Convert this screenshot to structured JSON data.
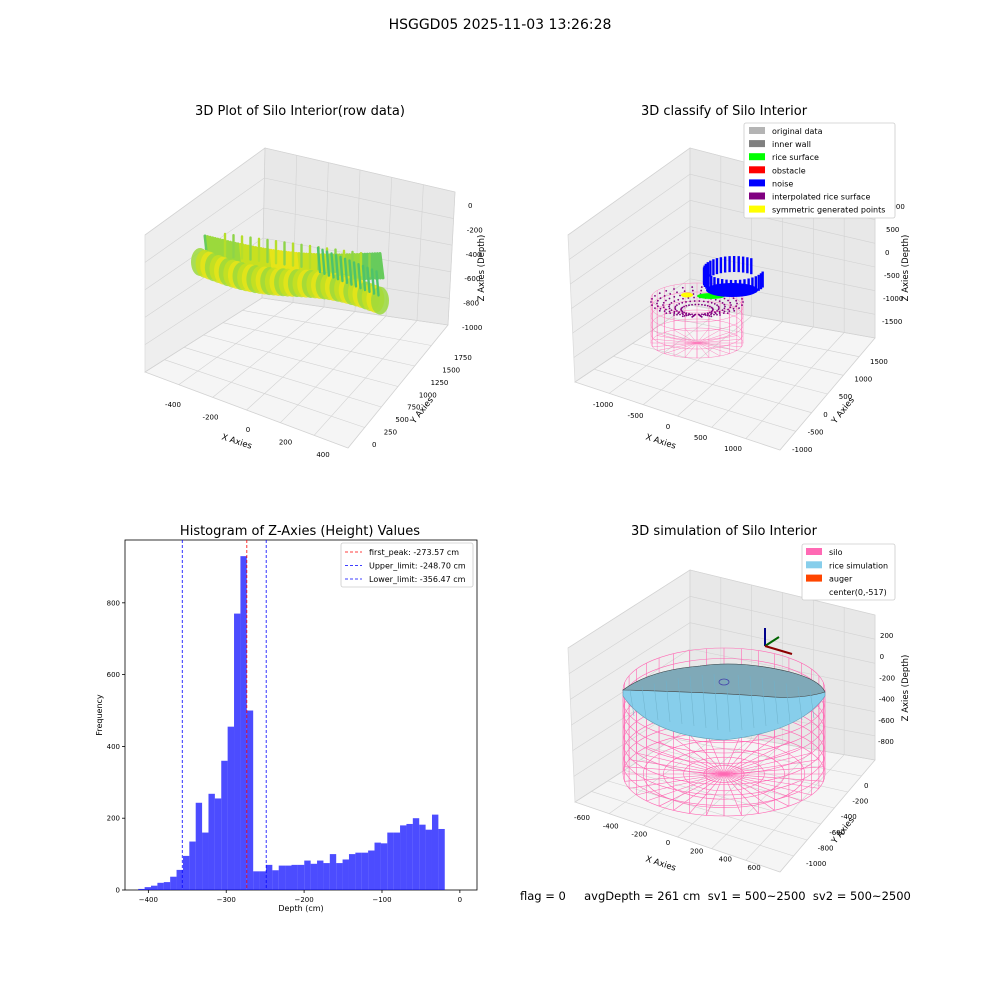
{
  "suptitle": "HSGGD05 2025-11-03 13:26:28",
  "panels": {
    "raw": {
      "title": "3D Plot of Silo Interior(row data)",
      "xlabel": "X Axies",
      "ylabel": "Y Axies",
      "zlabel": "Z Axies (Depth)",
      "xticks": [
        "-400",
        "-200",
        "0",
        "200",
        "400"
      ],
      "yticks": [
        "0",
        "250",
        "500",
        "750",
        "1000",
        "1250",
        "1500",
        "1750"
      ],
      "zticks": [
        "0",
        "-200",
        "-400",
        "-600",
        "-800",
        "-1000"
      ]
    },
    "classify": {
      "title": "3D classify of Silo Interior",
      "xlabel": "X Axies",
      "ylabel": "Y Axies",
      "zlabel": "Z Axies (Depth)",
      "xticks": [
        "-1000",
        "-500",
        "0",
        "500",
        "1000"
      ],
      "yticks": [
        "-1000",
        "-500",
        "0",
        "500",
        "1000",
        "1500"
      ],
      "zticks": [
        "1000",
        "500",
        "0",
        "-500",
        "-1000",
        "-1500"
      ],
      "legend": [
        {
          "label": "original data",
          "color": "#b4b4b4"
        },
        {
          "label": "inner wall",
          "color": "#808080"
        },
        {
          "label": "rice surface",
          "color": "#00ff00"
        },
        {
          "label": "obstacle",
          "color": "#ff0000"
        },
        {
          "label": "noise",
          "color": "#0000ff"
        },
        {
          "label": "interpolated rice surface",
          "color": "#800080"
        },
        {
          "label": "symmetric generated points",
          "color": "#ffff00"
        }
      ]
    },
    "simulation": {
      "title": "3D simulation of Silo Interior",
      "xlabel": "X Axies",
      "ylabel": "Y Axies",
      "zlabel": "Z Axies (Depth)",
      "xticks": [
        "-600",
        "-400",
        "-200",
        "0",
        "200",
        "400",
        "600"
      ],
      "yticks": [
        "-1000",
        "-800",
        "-600",
        "-400",
        "-200",
        "0"
      ],
      "zticks": [
        "200",
        "0",
        "-200",
        "-400",
        "-600",
        "-800"
      ],
      "legend": [
        {
          "label": "silo",
          "color": "#ff69b4"
        },
        {
          "label": "rice simulation",
          "color": "#87ceeb"
        },
        {
          "label": "auger",
          "color": "#ff4500"
        },
        {
          "label": "center(0,-517)",
          "color": "#ffffff"
        }
      ],
      "footer": "flag = 0     avgDepth = 261 cm  sv1 = 500~2500  sv2 = 500~2500"
    }
  },
  "chart_data": [
    {
      "type": "bar",
      "title": "Histogram of Z-Axies (Height) Values",
      "xlabel": "Depth (cm)",
      "ylabel": "Frequency",
      "xlim": [
        -430,
        22
      ],
      "ylim": [
        0,
        975
      ],
      "xticks": [
        -400,
        -300,
        -200,
        -100,
        0
      ],
      "yticks": [
        0,
        200,
        400,
        600,
        800
      ],
      "bin_width": 8.2,
      "bin_start": -413,
      "values": [
        3,
        8,
        12,
        20,
        22,
        37,
        56,
        95,
        135,
        243,
        160,
        268,
        255,
        360,
        455,
        770,
        930,
        500,
        52,
        52,
        70,
        55,
        68,
        68,
        70,
        70,
        82,
        73,
        82,
        75,
        100,
        75,
        85,
        100,
        104,
        104,
        110,
        132,
        130,
        160,
        160,
        180,
        184,
        200,
        182,
        168,
        210,
        170
      ],
      "color": "#0000ff",
      "lines": [
        {
          "label": "first_peak: -273.57 cm",
          "x": -273.57,
          "color": "#ff0000"
        },
        {
          "label": "Upper_limit: -248.70 cm",
          "x": -248.7,
          "color": "#0000ff"
        },
        {
          "label": "Lower_limit: -356.47 cm",
          "x": -356.47,
          "color": "#0000ff"
        }
      ],
      "legend": "top-right"
    }
  ]
}
